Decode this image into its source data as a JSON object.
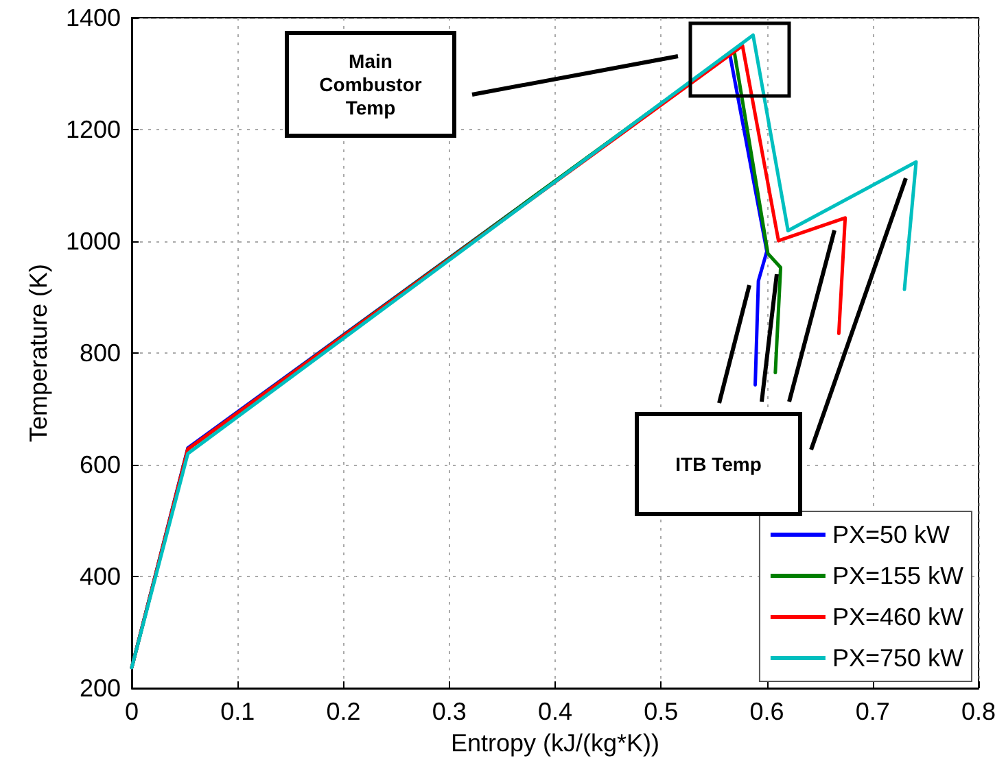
{
  "chart_data": {
    "type": "line",
    "xlabel": "Entropy (kJ/(kg*K))",
    "ylabel": "Temperature (K)",
    "xlim": [
      0,
      0.8
    ],
    "xticks": [
      0,
      0.1,
      0.2,
      0.3,
      0.4,
      0.5,
      0.6,
      0.7,
      0.8
    ],
    "ylim": [
      200,
      1400
    ],
    "yticks": [
      200,
      400,
      600,
      800,
      1000,
      1200,
      1400
    ],
    "grid": true,
    "legend": "bottom right",
    "line_style": "solid",
    "marker": "none",
    "annotations": [
      "Main Combustor Temp",
      "ITB Temp"
    ],
    "series": [
      {
        "name": "PX=50 kW",
        "color": "#0000ff",
        "x": [
          0,
          0.053,
          0.565,
          0.6,
          0.592,
          0.589
        ],
        "values": [
          237,
          630,
          1335,
          982,
          929,
          743
        ]
      },
      {
        "name": "PX=155 kW",
        "color": "#007f00",
        "x": [
          0,
          0.053,
          0.569,
          0.601,
          0.613,
          0.608
        ],
        "values": [
          237,
          628,
          1342,
          978,
          953,
          765
        ]
      },
      {
        "name": "PX=460 kW",
        "color": "#ff0000",
        "x": [
          0,
          0.053,
          0.577,
          0.611,
          0.674,
          0.668
        ],
        "values": [
          237,
          628,
          1350,
          1001,
          1042,
          835
        ]
      },
      {
        "name": "PX=750 kW",
        "color": "#00bfbf",
        "x": [
          0,
          0.053,
          0.587,
          0.62,
          0.741,
          0.73
        ],
        "values": [
          237,
          620,
          1369,
          1019,
          1142,
          914
        ]
      }
    ]
  }
}
